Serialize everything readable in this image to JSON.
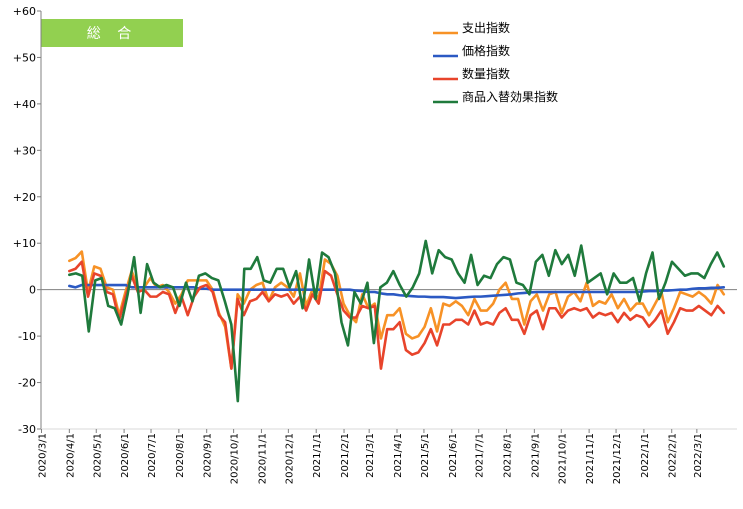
{
  "badge": {
    "label": "総 合",
    "color": "#92d050"
  },
  "chart_data": {
    "type": "line",
    "title": "",
    "xlabel": "",
    "ylabel": "",
    "ylim": [
      -30,
      60
    ],
    "yticks": [
      60,
      50,
      40,
      30,
      20,
      10,
      0,
      -10,
      -20,
      -30
    ],
    "ytick_labels": [
      "+60",
      "+50",
      "+40",
      "+30",
      "+20",
      "+10",
      "0",
      "-10",
      "-20",
      "-30"
    ],
    "grid": false,
    "legend_position": "top-right",
    "x_tick_labels": [
      "2020/3/1",
      "2020/4/1",
      "2020/5/1",
      "2020/6/1",
      "2020/7/1",
      "2020/8/1",
      "2020/9/1",
      "2020/10/1",
      "2020/11/1",
      "2020/12/1",
      "2021/1/1",
      "2021/2/1",
      "2021/3/1",
      "2021/4/1",
      "2021/5/1",
      "2021/6/1",
      "2021/7/1",
      "2021/8/1",
      "2021/9/1",
      "2021/10/1",
      "2021/11/1",
      "2021/12/1",
      "2022/1/1",
      "2022/2/1",
      "2022/3/1"
    ],
    "x_start": "2020/4/1",
    "x_end": "2022/3/31",
    "series": [
      {
        "name": "支出指数",
        "color": "#f79226",
        "values": [
          6.2,
          6.8,
          8.2,
          -0.5,
          5.0,
          4.5,
          0.5,
          0.0,
          -5.5,
          -0.5,
          4.0,
          0.5,
          0.5,
          2.5,
          0.5,
          1.0,
          -0.5,
          -3.0,
          -1.0,
          2.0,
          2.0,
          2.0,
          2.0,
          0.0,
          -5.0,
          -8.0,
          -17.0,
          -1.0,
          -3.0,
          0.0,
          1.0,
          1.5,
          -2.5,
          0.5,
          1.5,
          0.5,
          -1.5,
          3.5,
          -3.5,
          0.0,
          -2.0,
          6.5,
          5.5,
          3.0,
          -3.0,
          -5.5,
          -7.0,
          -1.0,
          -4.0,
          -3.0,
          -10.5,
          -5.5,
          -5.5,
          -4.0,
          -9.5,
          -10.5,
          -10.0,
          -8.0,
          -4.0,
          -9.0,
          -3.0,
          -3.5,
          -2.5,
          -3.5,
          -5.5,
          -2.0,
          -4.5,
          -4.5,
          -3.0,
          0.0,
          1.5,
          -2.0,
          -2.0,
          -7.5,
          -2.5,
          -1.0,
          -4.5,
          -1.0,
          -0.5,
          -5.0,
          -1.5,
          -0.5,
          -2.5,
          1.5,
          -3.5,
          -2.5,
          -3.0,
          -1.0,
          -4.0,
          -2.0,
          -4.5,
          -3.0,
          -3.0,
          -5.5,
          -3.0,
          -0.5,
          -7.0,
          -4.0,
          -0.5,
          -1.0,
          -1.5,
          -0.5,
          -1.5,
          -3.0,
          1.0,
          -1.0
        ]
      },
      {
        "name": "価格指数",
        "color": "#2b59c3",
        "values": [
          0.8,
          0.5,
          1.0,
          1.0,
          1.0,
          1.0,
          1.0,
          1.0,
          1.0,
          1.0,
          0.5,
          0.5,
          0.5,
          0.5,
          0.5,
          0.5,
          0.5,
          0.5,
          0.5,
          0.5,
          0.5,
          0.2,
          0.2,
          0.0,
          0.0,
          0.0,
          0.0,
          0.0,
          0.0,
          0.0,
          0.0,
          0.0,
          0.0,
          0.0,
          0.0,
          0.0,
          0.0,
          0.0,
          0.0,
          0.0,
          0.0,
          0.0,
          0.0,
          0.0,
          0.0,
          0.0,
          -0.2,
          -0.3,
          -0.5,
          -0.5,
          -0.8,
          -1.0,
          -1.0,
          -1.2,
          -1.3,
          -1.4,
          -1.5,
          -1.5,
          -1.6,
          -1.6,
          -1.6,
          -1.7,
          -1.8,
          -1.7,
          -1.6,
          -1.5,
          -1.5,
          -1.4,
          -1.3,
          -1.2,
          -1.1,
          -1.0,
          -0.8,
          -0.7,
          -0.6,
          -0.5,
          -0.5,
          -0.5,
          -0.5,
          -0.5,
          -0.5,
          -0.5,
          -0.5,
          -0.5,
          -0.5,
          -0.5,
          -0.5,
          -0.5,
          -0.5,
          -0.5,
          -0.5,
          -0.5,
          -0.4,
          -0.3,
          -0.3,
          -0.2,
          -0.2,
          -0.1,
          0.0,
          0.0,
          0.2,
          0.3,
          0.3,
          0.4,
          0.4,
          0.5
        ]
      },
      {
        "name": "数量指数",
        "color": "#e8442b",
        "values": [
          4.0,
          4.5,
          6.0,
          -1.5,
          3.5,
          3.0,
          -0.5,
          -1.0,
          -6.5,
          -1.5,
          3.0,
          -0.5,
          0.0,
          -1.5,
          -1.5,
          -0.5,
          -1.0,
          -5.0,
          -1.5,
          -5.5,
          -1.5,
          0.5,
          1.0,
          -0.5,
          -5.5,
          -7.0,
          -17.0,
          -2.0,
          -5.5,
          -2.5,
          -2.0,
          -0.5,
          -2.5,
          -1.0,
          -1.5,
          -1.0,
          -3.0,
          -1.5,
          -4.5,
          -1.0,
          -3.0,
          4.0,
          3.0,
          -1.0,
          -4.5,
          -6.0,
          -6.0,
          -3.5,
          -4.0,
          -3.5,
          -17.0,
          -8.5,
          -8.5,
          -7.0,
          -13.0,
          -14.0,
          -13.5,
          -11.5,
          -8.5,
          -12.0,
          -7.5,
          -7.5,
          -6.5,
          -6.5,
          -7.5,
          -4.5,
          -7.5,
          -7.0,
          -7.5,
          -5.0,
          -4.0,
          -6.5,
          -6.5,
          -9.5,
          -5.5,
          -4.5,
          -8.5,
          -4.0,
          -4.0,
          -6.0,
          -4.5,
          -4.0,
          -4.5,
          -4.0,
          -6.0,
          -5.0,
          -5.5,
          -5.0,
          -7.0,
          -5.0,
          -6.5,
          -5.5,
          -6.0,
          -8.0,
          -6.5,
          -4.5,
          -9.5,
          -7.0,
          -4.0,
          -4.5,
          -4.5,
          -3.5,
          -4.5,
          -5.5,
          -3.5,
          -5.0
        ]
      },
      {
        "name": "商品入替効果指数",
        "color": "#1f7a3c",
        "values": [
          3.2,
          3.5,
          3.0,
          -9.0,
          2.0,
          2.5,
          -3.5,
          -4.0,
          -7.5,
          -1.0,
          7.0,
          -5.0,
          5.5,
          1.5,
          0.5,
          1.0,
          0.5,
          -3.5,
          1.5,
          -2.5,
          3.0,
          3.5,
          2.5,
          2.0,
          -2.5,
          -7.5,
          -24.0,
          4.5,
          4.5,
          7.0,
          2.0,
          1.5,
          4.5,
          4.5,
          0.5,
          4.0,
          -4.0,
          6.5,
          -2.0,
          8.0,
          7.0,
          3.5,
          -7.0,
          -12.0,
          -0.5,
          -3.0,
          1.5,
          -11.5,
          0.5,
          1.5,
          4.0,
          1.0,
          -1.5,
          0.5,
          3.5,
          10.5,
          3.5,
          8.5,
          7.0,
          6.5,
          3.5,
          1.5,
          7.5,
          1.0,
          3.0,
          2.5,
          5.5,
          7.0,
          6.5,
          1.5,
          1.0,
          -1.0,
          6.0,
          7.5,
          3.0,
          8.5,
          5.5,
          7.5,
          3.0,
          9.5,
          1.5,
          2.5,
          3.5,
          -1.0,
          3.5,
          1.5,
          1.5,
          2.5,
          -2.5,
          3.5,
          8.0,
          -2.0,
          1.5,
          6.0,
          4.5,
          3.0,
          3.5,
          3.5,
          2.5,
          5.5,
          8.0,
          5.0
        ]
      }
    ]
  }
}
